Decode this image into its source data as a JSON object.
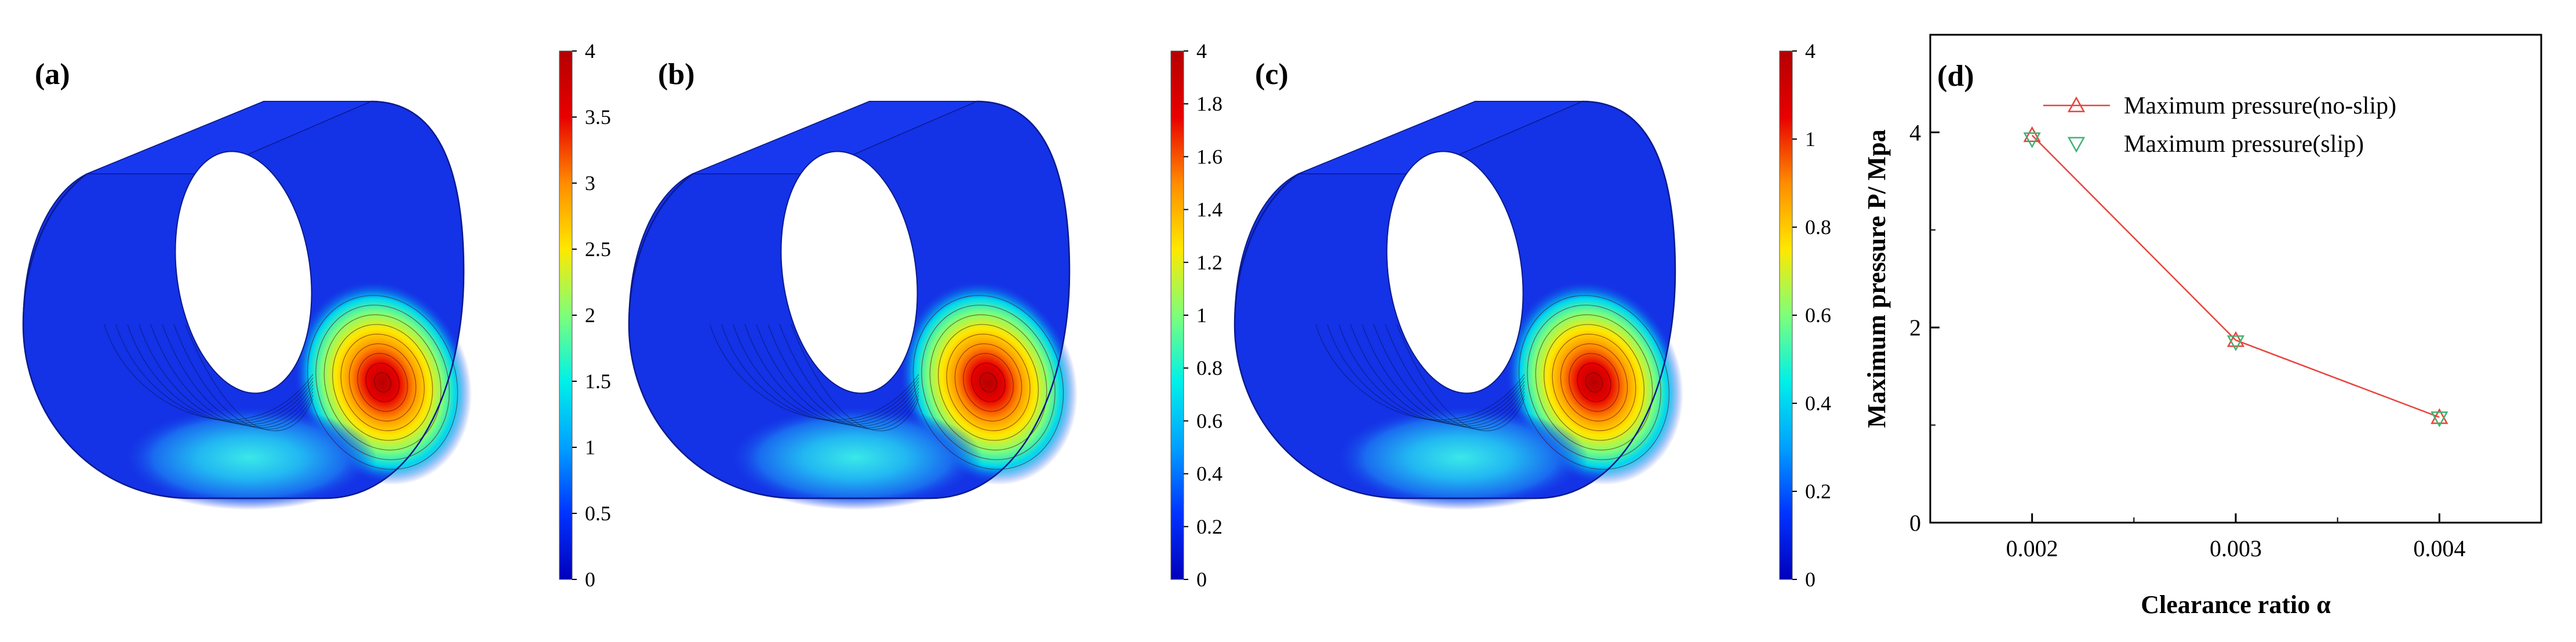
{
  "colorbar_colors": [
    "#0000bb",
    "#0033ff",
    "#00a0ff",
    "#00f0e8",
    "#7dff7a",
    "#ffe800",
    "#ff8c00",
    "#e80000",
    "#b40000"
  ],
  "bearing_colors": {
    "base": "#1432e6",
    "shade": "#0b1fb0",
    "edge": "#0a1a8c"
  },
  "panels": [
    {
      "label": "(a)",
      "colorbar_ticks": [
        "0",
        "0.5",
        "1",
        "1.5",
        "2",
        "2.5",
        "3",
        "3.5",
        "4"
      ]
    },
    {
      "label": "(b)",
      "colorbar_ticks": [
        "0",
        "0.2",
        "0.4",
        "0.6",
        "0.8",
        "1",
        "1.2",
        "1.4",
        "1.6",
        "1.8",
        "4"
      ]
    },
    {
      "label": "(c)",
      "colorbar_ticks": [
        "0",
        "0.2",
        "0.4",
        "0.6",
        "0.8",
        "1",
        "4"
      ]
    }
  ],
  "chart_data": {
    "type": "line",
    "panel_label": "(d)",
    "xlabel": "Clearance ratio α",
    "ylabel": "Maximum pressure P/ Mpa",
    "x": [
      0.002,
      0.003,
      0.004
    ],
    "xticks": [
      "0.002",
      "0.003",
      "0.004"
    ],
    "yticks": [
      "0",
      "2",
      "4"
    ],
    "xlim": [
      0.0015,
      0.0045
    ],
    "ylim": [
      0,
      5
    ],
    "grid": false,
    "legend_position": "top-right",
    "series": [
      {
        "name": "Maximum pressure(no-slip)",
        "values": [
          3.97,
          1.87,
          1.08
        ],
        "color": "#e8433c",
        "marker": "triangle-up",
        "line": true
      },
      {
        "name": "Maximum pressure(slip)",
        "values": [
          3.93,
          1.85,
          1.07
        ],
        "color": "#3cb371",
        "marker": "triangle-down",
        "line": false
      }
    ]
  }
}
